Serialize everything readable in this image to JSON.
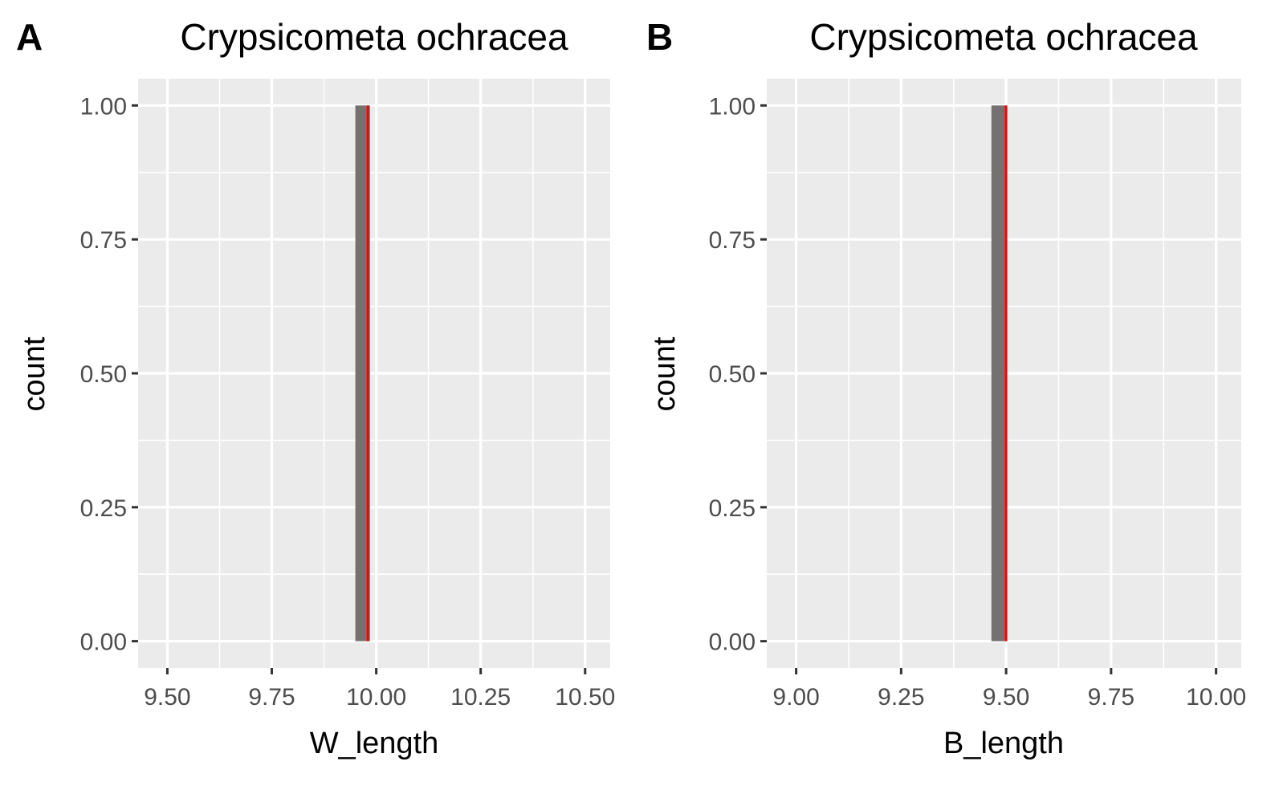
{
  "chart_data": [
    {
      "type": "bar",
      "panel_label": "A",
      "title": "Crypsicometa ochracea",
      "xlabel": "W_length",
      "ylabel": "count",
      "xlim": [
        9.43,
        10.56
      ],
      "ylim": [
        -0.05,
        1.05
      ],
      "x_ticks": [
        9.5,
        9.75,
        10.0,
        10.25,
        10.5
      ],
      "x_tick_labels": [
        "9.50",
        "9.75",
        "10.00",
        "10.25",
        "10.50"
      ],
      "y_ticks": [
        0,
        0.25,
        0.5,
        0.75,
        1.0
      ],
      "y_tick_labels": [
        "0.00",
        "0.25",
        "0.50",
        "0.75",
        "1.00"
      ],
      "bars": [
        {
          "x0": 9.95,
          "x1": 9.985,
          "count": 1
        }
      ],
      "reference_line_x": 9.98,
      "grid": true,
      "colors": {
        "panel_bg": "#ebebeb",
        "grid": "#ffffff",
        "bar": "#767171",
        "reference_line": "#ff0000",
        "tick_text": "#4d4d4d",
        "axis_tick": "#333333"
      }
    },
    {
      "type": "bar",
      "panel_label": "B",
      "title": "Crypsicometa ochracea",
      "xlabel": "B_length",
      "ylabel": "count",
      "xlim": [
        8.93,
        10.06
      ],
      "ylim": [
        -0.05,
        1.05
      ],
      "x_ticks": [
        9.0,
        9.25,
        9.5,
        9.75,
        10.0
      ],
      "x_tick_labels": [
        "9.00",
        "9.25",
        "9.50",
        "9.75",
        "10.00"
      ],
      "y_ticks": [
        0,
        0.25,
        0.5,
        0.75,
        1.0
      ],
      "y_tick_labels": [
        "0.00",
        "0.25",
        "0.50",
        "0.75",
        "1.00"
      ],
      "bars": [
        {
          "x0": 9.465,
          "x1": 9.5,
          "count": 1
        }
      ],
      "reference_line_x": 9.5,
      "grid": true,
      "colors": {
        "panel_bg": "#ebebeb",
        "grid": "#ffffff",
        "bar": "#767171",
        "reference_line": "#ff0000",
        "tick_text": "#4d4d4d",
        "axis_tick": "#333333"
      }
    }
  ]
}
